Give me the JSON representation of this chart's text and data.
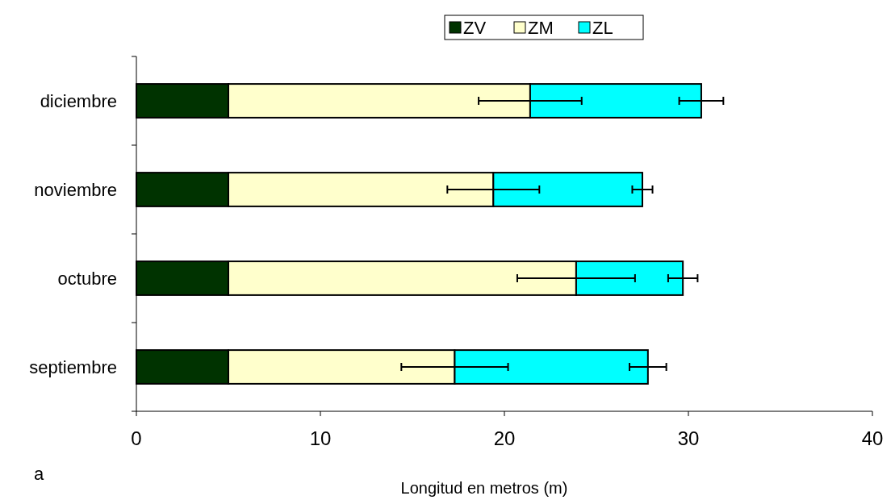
{
  "chart_data": {
    "type": "bar",
    "orientation": "horizontal",
    "stacked": true,
    "categories": [
      "diciembre",
      "noviembre",
      "octubre",
      "septiembre"
    ],
    "series": [
      {
        "name": "ZV",
        "color": "#003300",
        "values": [
          5,
          5,
          5,
          5
        ]
      },
      {
        "name": "ZM",
        "color": "#ffffcc",
        "values": [
          16.4,
          14.4,
          18.9,
          12.3
        ],
        "errors": [
          2.8,
          2.5,
          3.2,
          2.9
        ]
      },
      {
        "name": "ZL",
        "color": "#00ffff",
        "values": [
          9.3,
          8.1,
          5.8,
          10.5
        ],
        "errors": [
          1.2,
          0.55,
          0.8,
          1.0
        ]
      }
    ],
    "xlim": [
      0,
      40
    ],
    "xticks": [
      0,
      10,
      20,
      30,
      40
    ],
    "xlabel": "Longitud en metros (m)",
    "legend": "top",
    "grid": false,
    "annotations": [
      "a"
    ]
  }
}
